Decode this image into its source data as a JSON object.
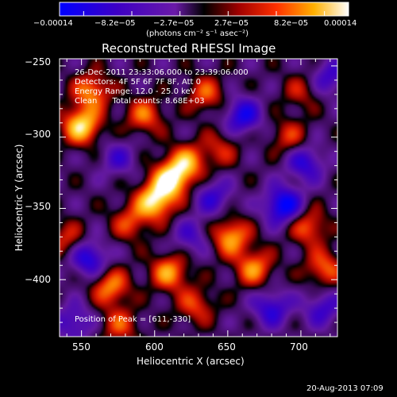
{
  "chart_data": {
    "type": "heatmap",
    "title": "Reconstructed RHESSI Image",
    "xlabel": "Heliocentric X (arcsec)",
    "ylabel": "Heliocentric Y (arcsec)",
    "xlim": [
      535,
      725
    ],
    "ylim": [
      -440,
      -245
    ],
    "x_ticks": [
      550,
      600,
      650,
      700
    ],
    "y_ticks": [
      -250,
      -300,
      -350,
      -400
    ],
    "x_tick_labels": [
      "550",
      "600",
      "650",
      "700"
    ],
    "y_tick_labels": [
      "−250",
      "−300",
      "−350",
      "−400"
    ],
    "colorbar": {
      "range": [
        -0.00014,
        0.00014
      ],
      "tick_labels": [
        "−0.00014",
        "−8.2e−05",
        "−2.7e−05",
        "2.7e−05",
        "8.2e−05",
        "0.00014"
      ],
      "unit_label": "(photons cm⁻² s⁻¹ asec⁻²)"
    },
    "annotations": [
      "26-Dec-2011 23:33:06.000 to 23:39:06.000",
      "Detectors: 4F 5F 6F 7F 8F, Att 0",
      "Energy Range: 12.0 - 25.0 keV",
      "Clean      Total counts: 8.68E+03",
      "Position of Peak = [611,-330]"
    ],
    "peak_position": [
      611,
      -330
    ],
    "hotspots": [
      {
        "x": 550,
        "y": -292,
        "value": 1.0
      },
      {
        "x": 557,
        "y": -268,
        "value": 0.7
      },
      {
        "x": 600,
        "y": -345,
        "value": 1.0
      },
      {
        "x": 611,
        "y": -330,
        "value": 1.0
      },
      {
        "x": 622,
        "y": -318,
        "value": 0.75
      },
      {
        "x": 593,
        "y": -285,
        "value": 0.6
      },
      {
        "x": 635,
        "y": -270,
        "value": 0.55
      },
      {
        "x": 652,
        "y": -370,
        "value": 0.8
      },
      {
        "x": 668,
        "y": -392,
        "value": 0.7
      },
      {
        "x": 705,
        "y": -363,
        "value": 0.6
      },
      {
        "x": 716,
        "y": -392,
        "value": 0.6
      },
      {
        "x": 570,
        "y": -405,
        "value": 0.7
      },
      {
        "x": 610,
        "y": -395,
        "value": 0.75
      },
      {
        "x": 583,
        "y": -360,
        "value": 0.5
      },
      {
        "x": 628,
        "y": -418,
        "value": 0.5
      },
      {
        "x": 540,
        "y": -372,
        "value": 0.45
      },
      {
        "x": 645,
        "y": -308,
        "value": 0.4
      },
      {
        "x": 700,
        "y": -268,
        "value": 0.35
      },
      {
        "x": 692,
        "y": -300,
        "value": 0.45
      },
      {
        "x": 576,
        "y": -432,
        "value": 0.5
      }
    ],
    "coldspots": [
      {
        "x": 660,
        "y": -285,
        "value": -0.7
      },
      {
        "x": 688,
        "y": -348,
        "value": -0.9
      },
      {
        "x": 703,
        "y": -318,
        "value": -0.6
      },
      {
        "x": 555,
        "y": -385,
        "value": -0.7
      },
      {
        "x": 680,
        "y": -420,
        "value": -0.6
      },
      {
        "x": 640,
        "y": -342,
        "value": -0.5
      },
      {
        "x": 575,
        "y": -315,
        "value": -0.4
      },
      {
        "x": 715,
        "y": -420,
        "value": -0.5
      },
      {
        "x": 625,
        "y": -370,
        "value": -0.4
      },
      {
        "x": 545,
        "y": -430,
        "value": -0.5
      },
      {
        "x": 720,
        "y": -258,
        "value": -0.5
      }
    ]
  },
  "footer_timestamp": "20-Aug-2013 07:09"
}
